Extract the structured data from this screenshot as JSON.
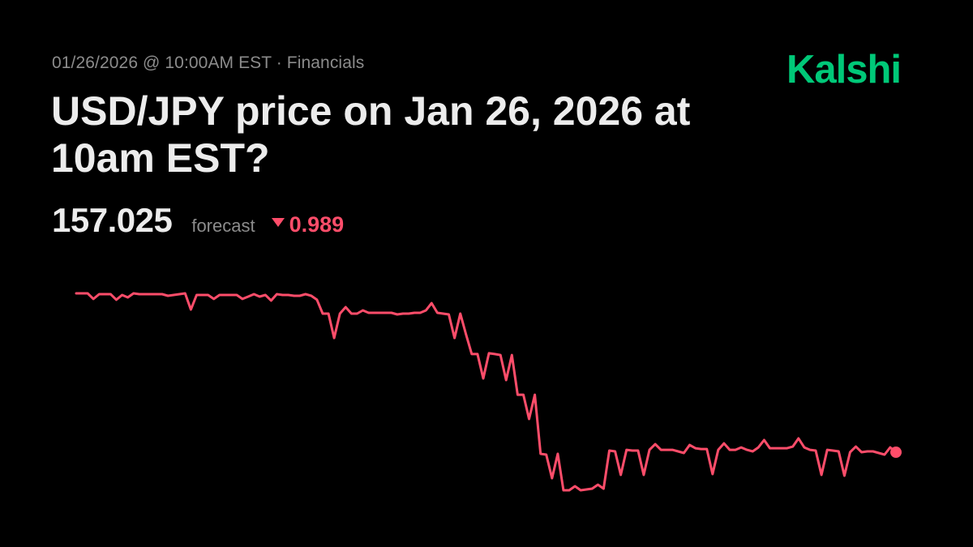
{
  "header": {
    "meta": "01/26/2026 @ 10:00AM EST · Financials",
    "title": "USD/JPY price on Jan 26, 2026 at 10am EST?",
    "logo": "Kalshi"
  },
  "stats": {
    "price": "157.025",
    "forecast_label": "forecast",
    "change_direction": "down",
    "change": "0.989"
  },
  "colors": {
    "background": "#000000",
    "line": "#ff4d6a",
    "brand": "#00c878",
    "text": "#ececec",
    "muted": "#8c8c8c"
  },
  "chart_data": {
    "type": "line",
    "grid": false,
    "axes_visible": false,
    "end_marker": true,
    "values": [
      158.014,
      158.014,
      158.014,
      157.979,
      158.009,
      158.009,
      158.009,
      157.974,
      158.004,
      157.989,
      158.014,
      158.009,
      158.009,
      158.009,
      158.009,
      158.009,
      157.999,
      158.004,
      158.009,
      158.014,
      157.913,
      158.004,
      158.004,
      158.004,
      157.979,
      158.004,
      158.004,
      158.004,
      158.004,
      157.979,
      157.994,
      158.009,
      157.994,
      158.004,
      157.969,
      158.009,
      158.004,
      158.004,
      157.999,
      157.999,
      158.009,
      157.999,
      157.974,
      157.888,
      157.888,
      157.736,
      157.888,
      157.928,
      157.888,
      157.888,
      157.908,
      157.893,
      157.893,
      157.893,
      157.893,
      157.893,
      157.883,
      157.888,
      157.888,
      157.893,
      157.893,
      157.908,
      157.953,
      157.893,
      157.888,
      157.883,
      157.736,
      157.888,
      157.757,
      157.636,
      157.636,
      157.484,
      157.641,
      157.636,
      157.63,
      157.474,
      157.63,
      157.383,
      157.383,
      157.232,
      157.383,
      157.015,
      157.01,
      156.863,
      157.015,
      156.788,
      156.788,
      156.813,
      156.788,
      156.793,
      156.798,
      156.823,
      156.798,
      157.035,
      157.03,
      156.884,
      157.04,
      157.035,
      157.035,
      156.884,
      157.04,
      157.075,
      157.04,
      157.04,
      157.04,
      157.03,
      157.02,
      157.07,
      157.05,
      157.045,
      157.045,
      156.889,
      157.04,
      157.08,
      157.04,
      157.04,
      157.055,
      157.04,
      157.03,
      157.055,
      157.101,
      157.05,
      157.05,
      157.05,
      157.05,
      157.06,
      157.111,
      157.055,
      157.04,
      157.035,
      156.884,
      157.04,
      157.035,
      157.03,
      156.879,
      157.025,
      157.06,
      157.025,
      157.03,
      157.03,
      157.02,
      157.01,
      157.055,
      157.025
    ]
  }
}
